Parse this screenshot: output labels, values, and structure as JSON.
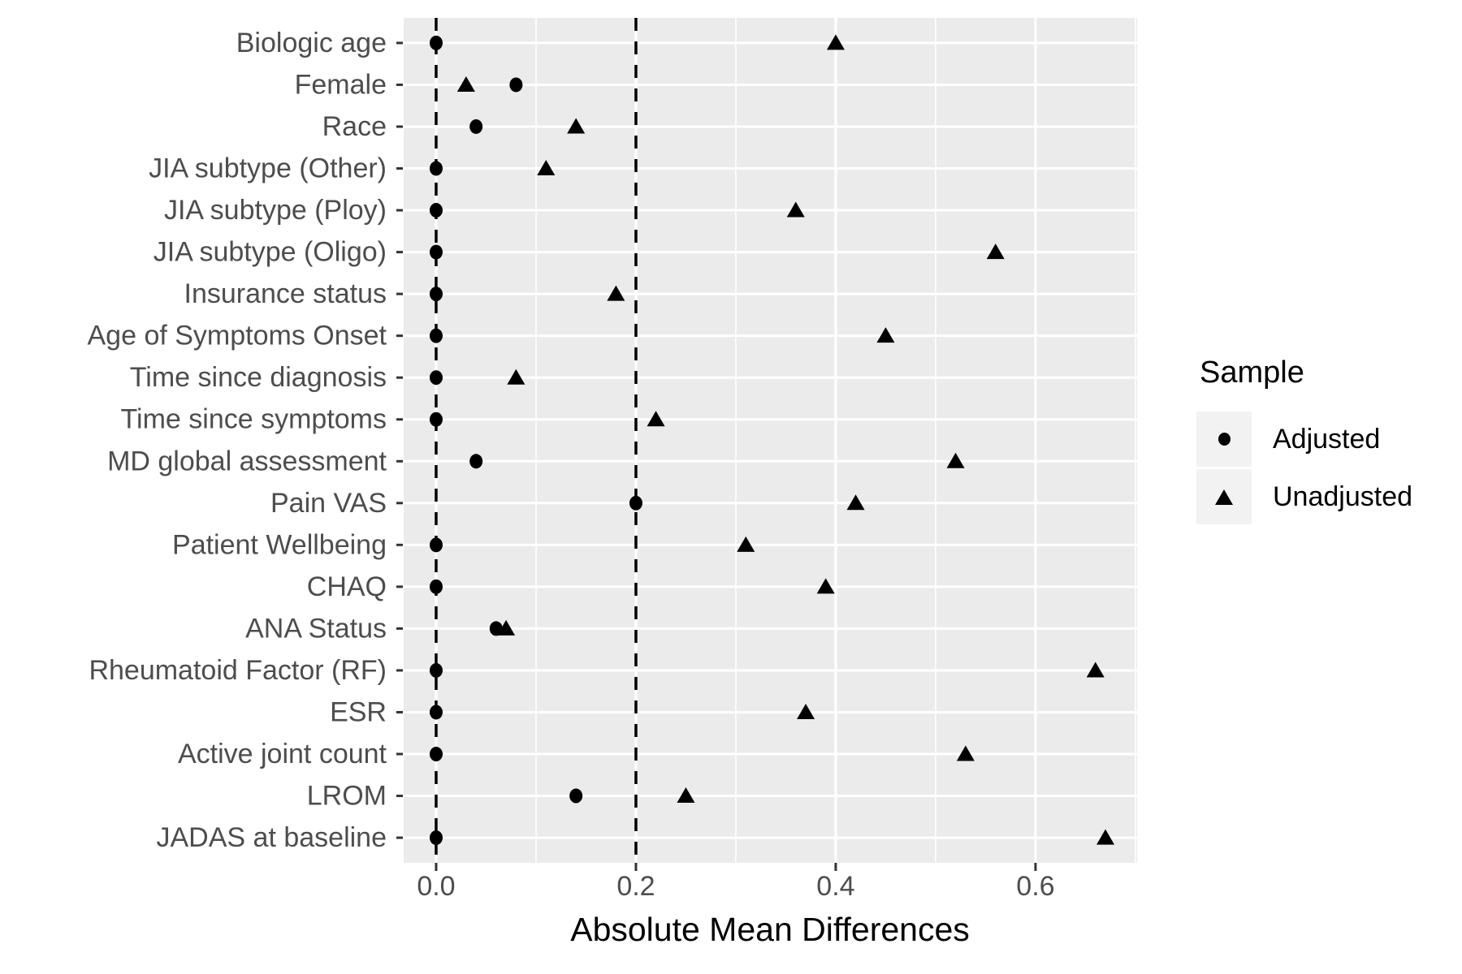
{
  "legend": {
    "title": "Sample",
    "items": [
      {
        "label": "Adjusted",
        "marker": "circle"
      },
      {
        "label": "Unadjusted",
        "marker": "triangle"
      }
    ]
  },
  "chart_data": {
    "type": "scatter",
    "orientation": "horizontal",
    "title": "",
    "xlabel": "Absolute Mean Differences",
    "ylabel": "",
    "categories": [
      "Biologic age",
      "Female",
      "Race",
      "JIA subtype (Other)",
      "JIA subtype (Ploy)",
      "JIA subtype (Oligo)",
      "Insurance status",
      "Age of Symptoms Onset",
      "Time since diagnosis",
      "Time since symptoms",
      "MD global assessment",
      "Pain VAS",
      "Patient Wellbeing",
      "CHAQ",
      "ANA Status",
      "Rheumatoid Factor (RF)",
      "ESR",
      "Active joint count",
      "LROM",
      "JADAS at baseline"
    ],
    "series": [
      {
        "name": "Adjusted",
        "marker": "circle",
        "values": [
          0.0,
          0.08,
          0.04,
          0.0,
          0.0,
          0.0,
          0.0,
          0.0,
          0.0,
          0.0,
          0.04,
          0.2,
          0.0,
          0.0,
          0.06,
          0.0,
          0.0,
          0.0,
          0.14,
          0.0
        ]
      },
      {
        "name": "Unadjusted",
        "marker": "triangle",
        "values": [
          0.4,
          0.03,
          0.14,
          0.11,
          0.36,
          0.56,
          0.18,
          0.45,
          0.08,
          0.22,
          0.52,
          0.42,
          0.31,
          0.39,
          0.07,
          0.66,
          0.37,
          0.53,
          0.25,
          0.67
        ]
      }
    ],
    "x_ticks": [
      0.0,
      0.2,
      0.4,
      0.6
    ],
    "x_tick_labels": [
      "0.0",
      "0.2",
      "0.4",
      "0.6"
    ],
    "x_minor_gridlines": [
      0.1,
      0.3,
      0.5,
      0.7
    ],
    "xlim": [
      -0.0325,
      0.7017
    ],
    "reference_lines": [
      {
        "x": 0.0,
        "style": "dashed"
      },
      {
        "x": 0.2,
        "style": "dashed"
      }
    ],
    "grid": true,
    "legend_position": "right",
    "colors": {
      "panel_background": "#EBEBEB",
      "gridline": "#FFFFFF",
      "axis_text": "#4D4D4D",
      "axis_title": "#000000",
      "marker": "#000000",
      "tick": "#333333",
      "legend_key": "#F2F2F2"
    }
  }
}
